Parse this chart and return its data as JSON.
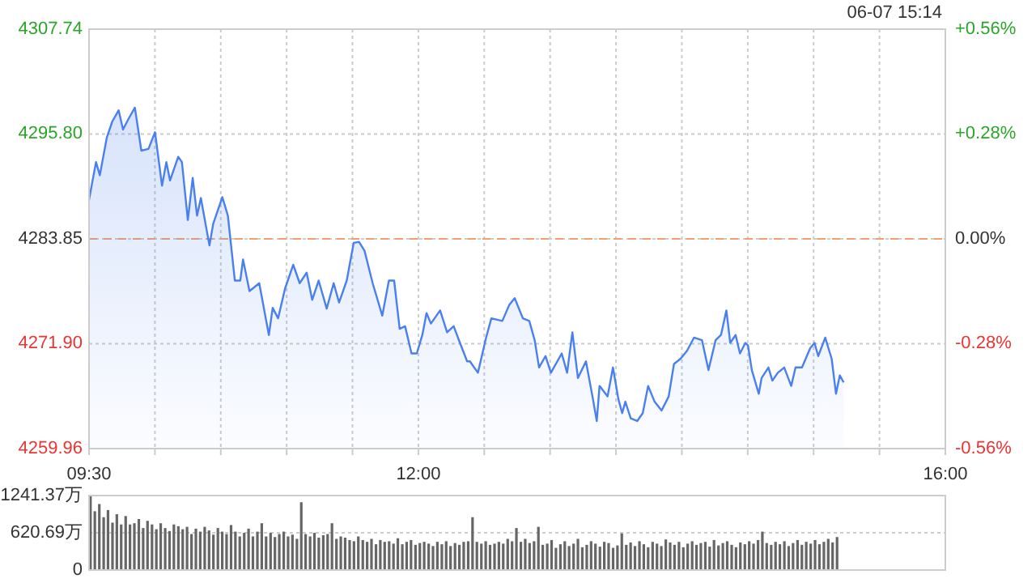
{
  "chart_data": [
    {
      "type": "area",
      "color": "#4a80ee",
      "annotations": [
        "06-07 15:14"
      ],
      "grid": true,
      "xlim": [
        9.5,
        16
      ],
      "xticks": [
        {
          "value": 9.5,
          "label": "09:30"
        },
        {
          "value": 10,
          "label": null
        },
        {
          "value": 10.5,
          "label": null
        },
        {
          "value": 11,
          "label": null
        },
        {
          "value": 11.5,
          "label": null
        },
        {
          "value": 12,
          "label": "12:00"
        },
        {
          "value": 12.5,
          "label": null
        },
        {
          "value": 13,
          "label": null
        },
        {
          "value": 13.5,
          "label": null
        },
        {
          "value": 14,
          "label": null
        },
        {
          "value": 14.5,
          "label": null
        },
        {
          "value": 15,
          "label": null
        },
        {
          "value": 15.5,
          "label": null
        },
        {
          "value": 16,
          "label": "16:00"
        }
      ],
      "ylim": [
        4259.96,
        4307.74
      ],
      "yticks": [
        4259.96,
        {
          "value": 4271.9,
          "label": "4271.90"
        },
        4283.85,
        {
          "value": 4295.8,
          "label": "4295.80"
        },
        4307.74
      ],
      "y2lim": [
        -0.56,
        0.56
      ],
      "y2ticks": [
        {
          "value": -0.56,
          "label": "-0.56%"
        },
        {
          "value": -0.28,
          "label": "-0.28%"
        },
        {
          "value": 0,
          "label": "0.00%"
        },
        {
          "value": 0.28,
          "label": "+0.28%"
        },
        {
          "value": 0.56,
          "label": "+0.56%"
        }
      ],
      "ref_lines": [
        {
          "axis": "y",
          "value": 4283.85,
          "color": "#f0a070",
          "line_style": "dashed"
        }
      ],
      "x": [
        9.5,
        9.553,
        9.582,
        9.635,
        9.676,
        9.725,
        9.758,
        9.799,
        9.848,
        9.897,
        9.951,
        10.001,
        10.054,
        10.087,
        10.115,
        10.177,
        10.205,
        10.25,
        10.287,
        10.32,
        10.349,
        10.414,
        10.443,
        10.512,
        10.554,
        10.607,
        10.648,
        10.669,
        10.718,
        10.792,
        10.865,
        10.894,
        10.935,
        10.988,
        11.05,
        11.099,
        11.152,
        11.194,
        11.243,
        11.304,
        11.357,
        11.398,
        11.456,
        11.509,
        11.55,
        11.591,
        11.653,
        11.726,
        11.776,
        11.816,
        11.858,
        11.899,
        11.948,
        11.988,
        12.03,
        12.062,
        12.095,
        12.165,
        12.218,
        12.268,
        12.308,
        12.37,
        12.391,
        12.452,
        12.514,
        12.554,
        12.637,
        12.689,
        12.731,
        12.793,
        12.842,
        12.883,
        12.916,
        12.965,
        13.006,
        13.088,
        13.129,
        13.169,
        13.211,
        13.272,
        13.325,
        13.354,
        13.375,
        13.436,
        13.477,
        13.518,
        13.547,
        13.571,
        13.612,
        13.661,
        13.703,
        13.744,
        13.793,
        13.846,
        13.9,
        13.94,
        13.99,
        14.039,
        14.092,
        14.153,
        14.202,
        14.256,
        14.297,
        14.338,
        14.367,
        14.408,
        14.441,
        14.482,
        14.502,
        14.531,
        14.584,
        14.605,
        14.657,
        14.687,
        14.728,
        14.777,
        14.83,
        14.863,
        14.912,
        14.974,
        15.007,
        15.035,
        15.088,
        15.137,
        15.17,
        15.199,
        15.228
      ],
      "values": [
        4288.3,
        4292.6,
        4291.1,
        4295.4,
        4297.2,
        4298.5,
        4296.3,
        4297.5,
        4298.8,
        4293.9,
        4294.1,
        4296.0,
        4289.9,
        4292.6,
        4290.5,
        4293.2,
        4292.6,
        4286.0,
        4290.8,
        4286.5,
        4288.5,
        4283.1,
        4285.6,
        4288.6,
        4286.5,
        4279.1,
        4279.1,
        4281.5,
        4277.9,
        4278.8,
        4272.9,
        4276.0,
        4274.8,
        4278.2,
        4280.9,
        4278.8,
        4280.0,
        4276.9,
        4279.1,
        4275.9,
        4278.8,
        4276.6,
        4279.1,
        4283.4,
        4283.5,
        4282.5,
        4278.8,
        4275.1,
        4279.1,
        4279.1,
        4273.6,
        4273.9,
        4270.8,
        4270.8,
        4272.9,
        4275.4,
        4274.2,
        4275.7,
        4273.2,
        4273.9,
        4272.3,
        4269.9,
        4269.9,
        4268.6,
        4272.6,
        4274.8,
        4274.5,
        4276.3,
        4277.1,
        4274.8,
        4274.5,
        4272.3,
        4269.2,
        4270.5,
        4268.6,
        4270.8,
        4268.6,
        4273.2,
        4268.0,
        4269.9,
        4265.6,
        4263.1,
        4267.1,
        4265.9,
        4269.2,
        4265.6,
        4264.0,
        4265.3,
        4263.4,
        4263.1,
        4264.0,
        4267.1,
        4265.3,
        4264.3,
        4265.9,
        4269.6,
        4270.2,
        4271.1,
        4272.6,
        4272.3,
        4268.9,
        4272.3,
        4272.9,
        4275.7,
        4272.0,
        4272.9,
        4270.8,
        4272.0,
        4271.7,
        4268.9,
        4266.2,
        4268.0,
        4269.2,
        4267.7,
        4268.6,
        4269.2,
        4267.1,
        4269.2,
        4269.2,
        4271.4,
        4272.0,
        4270.5,
        4272.6,
        4270.2,
        4266.2,
        4268.3,
        4267.5
      ]
    },
    {
      "type": "bar",
      "color": "#666666",
      "grid": "y",
      "tick_labels": "y",
      "xlim": [
        9.5,
        16
      ],
      "ylim": [
        0,
        1241.37
      ],
      "yticks": [
        0,
        {
          "value": 620.69,
          "label": "620.69万"
        },
        {
          "value": 1241.37,
          "label": "1241.37万"
        }
      ],
      "x": [
        9.5,
        9.533,
        9.567,
        9.6,
        9.633,
        9.667,
        9.7,
        9.733,
        9.767,
        9.8,
        9.833,
        9.867,
        9.9,
        9.933,
        9.967,
        10,
        10.033,
        10.067,
        10.1,
        10.133,
        10.167,
        10.2,
        10.233,
        10.267,
        10.3,
        10.333,
        10.367,
        10.4,
        10.433,
        10.467,
        10.5,
        10.533,
        10.567,
        10.6,
        10.633,
        10.667,
        10.7,
        10.733,
        10.767,
        10.8,
        10.833,
        10.867,
        10.9,
        10.933,
        10.967,
        11,
        11.033,
        11.067,
        11.1,
        11.133,
        11.167,
        11.2,
        11.233,
        11.267,
        11.3,
        11.333,
        11.367,
        11.4,
        11.433,
        11.467,
        11.5,
        11.533,
        11.567,
        11.6,
        11.633,
        11.667,
        11.7,
        11.733,
        11.767,
        11.8,
        11.833,
        11.867,
        11.9,
        11.933,
        11.967,
        12,
        12.033,
        12.067,
        12.1,
        12.133,
        12.167,
        12.2,
        12.233,
        12.267,
        12.3,
        12.333,
        12.367,
        12.4,
        12.433,
        12.467,
        12.5,
        12.533,
        12.567,
        12.6,
        12.633,
        12.667,
        12.7,
        12.733,
        12.767,
        12.8,
        12.833,
        12.867,
        12.9,
        12.933,
        12.967,
        13,
        13.033,
        13.067,
        13.1,
        13.133,
        13.167,
        13.2,
        13.233,
        13.267,
        13.3,
        13.333,
        13.367,
        13.4,
        13.433,
        13.467,
        13.5,
        13.533,
        13.567,
        13.6,
        13.633,
        13.667,
        13.7,
        13.733,
        13.767,
        13.8,
        13.833,
        13.867,
        13.9,
        13.933,
        13.967,
        14,
        14.033,
        14.067,
        14.1,
        14.133,
        14.167,
        14.2,
        14.233,
        14.267,
        14.3,
        14.333,
        14.367,
        14.4,
        14.433,
        14.467,
        14.5,
        14.533,
        14.567,
        14.6,
        14.633,
        14.667,
        14.7,
        14.733,
        14.767,
        14.8,
        14.833,
        14.867,
        14.9,
        14.933,
        14.967,
        15,
        15.033,
        15.067,
        15.1,
        15.133,
        15.167
      ],
      "values": [
        1241,
        980,
        1100,
        880,
        1000,
        790,
        930,
        760,
        900,
        760,
        780,
        850,
        700,
        820,
        760,
        680,
        780,
        700,
        650,
        760,
        730,
        680,
        720,
        600,
        690,
        640,
        720,
        660,
        590,
        700,
        640,
        600,
        750,
        640,
        560,
        620,
        690,
        560,
        640,
        780,
        560,
        620,
        550,
        600,
        640,
        560,
        590,
        520,
        1130,
        600,
        560,
        620,
        540,
        580,
        600,
        780,
        520,
        560,
        540,
        500,
        480,
        560,
        500,
        470,
        520,
        430,
        500,
        470,
        480,
        440,
        530,
        430,
        470,
        500,
        420,
        450,
        470,
        440,
        400,
        470,
        430,
        480,
        400,
        450,
        420,
        470,
        480,
        880,
        470,
        440,
        480,
        420,
        440,
        470,
        440,
        520,
        480,
        700,
        470,
        520,
        450,
        480,
        720,
        420,
        440,
        500,
        370,
        430,
        480,
        400,
        440,
        520,
        380,
        420,
        480,
        440,
        390,
        470,
        450,
        370,
        410,
        610,
        420,
        460,
        400,
        480,
        430,
        380,
        470,
        440,
        400,
        510,
        460,
        420,
        470,
        380,
        440,
        480,
        420,
        450,
        470,
        390,
        500,
        410,
        450,
        480,
        420,
        380,
        460,
        430,
        480,
        440,
        500,
        640,
        450,
        420,
        470,
        430,
        480,
        400,
        450,
        500,
        420,
        470,
        440,
        500,
        430,
        470,
        520,
        460,
        550
      ]
    }
  ]
}
